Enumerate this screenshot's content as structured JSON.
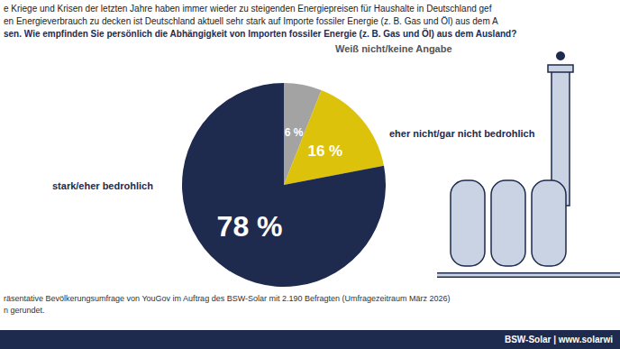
{
  "chart_data": {
    "type": "pie",
    "header_lines": [
      "e Kriege und Krisen der letzten Jahre haben immer wieder zu steigenden Energiepreisen für Haushalte in Deutschland gef",
      "en Energieverbrauch zu decken ist Deutschland aktuell sehr stark auf Importe fossiler Energie (z. B. Gas und Öl) aus dem A"
    ],
    "title": "sen. Wie empfinden Sie persönlich die Abhängigkeit von Importen fossiler Energie (z. B. Gas und Öl) aus dem Ausland?",
    "categories": [
      "Weiß nicht/keine Angabe",
      "eher nicht/gar nicht bedrohlich",
      "stark/eher bedrohlich"
    ],
    "values": [
      6,
      16,
      78
    ],
    "value_labels": [
      "6 %",
      "16 %",
      "78 %"
    ],
    "colors": [
      "#a3a3a3",
      "#dcc20b",
      "#1e2a4e"
    ],
    "data_labels": true,
    "source_lines": [
      "räsentative Bevölkerungsumfrage von YouGov im Auftrag des BSW-Solar mit 2.190 Befragten (Umfragezeitraum März 2026)",
      "n gerundet."
    ],
    "footer_brand": "BSW-Solar | www.solarwi"
  }
}
